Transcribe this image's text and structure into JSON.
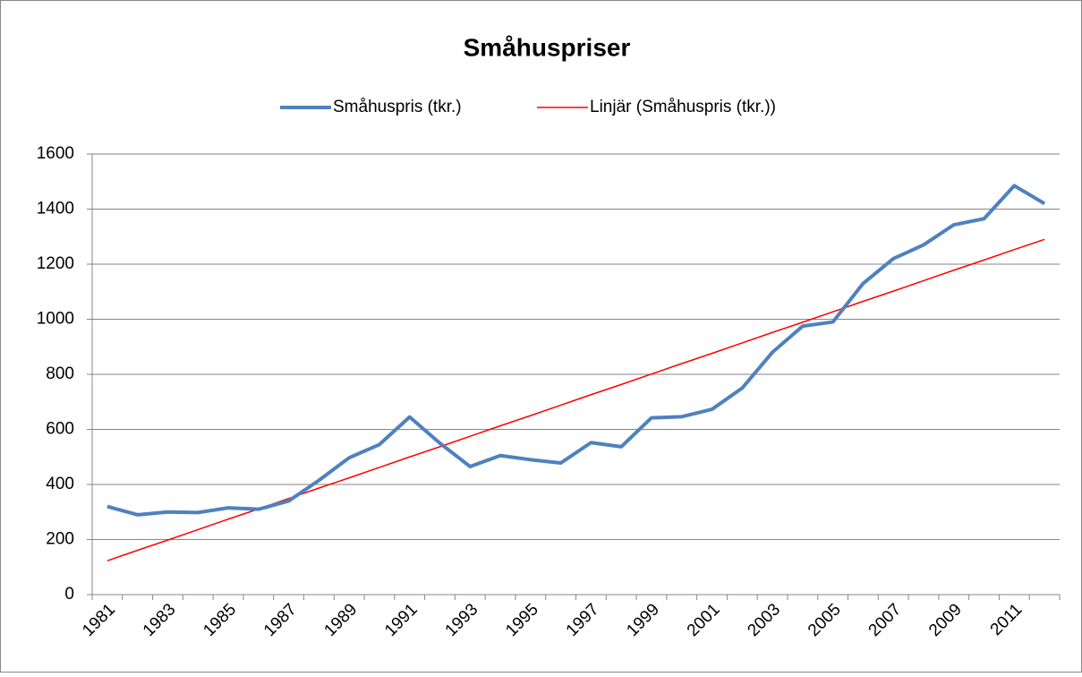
{
  "chart_data": {
    "type": "line",
    "title": "Småhuspriser",
    "categories": [
      "1981",
      null,
      "1983",
      null,
      "1985",
      null,
      "1987",
      null,
      "1989",
      null,
      "1991",
      null,
      "1993",
      null,
      "1995",
      null,
      "1997",
      null,
      "1999",
      null,
      "2001",
      null,
      "2003",
      null,
      "2005",
      null,
      "2007",
      null,
      "2009",
      null,
      "2011",
      null
    ],
    "series": [
      {
        "name": "Småhuspris (tkr.)",
        "color": "#4f81bd",
        "width": 4,
        "values": [
          320,
          290,
          300,
          298,
          315,
          310,
          340,
          415,
          497,
          545,
          645,
          550,
          465,
          505,
          490,
          478,
          552,
          537,
          642,
          646,
          673,
          750,
          880,
          975,
          990,
          1130,
          1220,
          1270,
          1343,
          1365,
          1485,
          1420
        ]
      },
      {
        "name": "Linjär (Småhuspris (tkr.))",
        "color": "#ff0000",
        "width": 1.5,
        "values": [
          123,
          161,
          198,
          236,
          274,
          311,
          349,
          387,
          424,
          462,
          500,
          537,
          575,
          613,
          650,
          688,
          726,
          763,
          801,
          839,
          876,
          914,
          952,
          989,
          1027,
          1065,
          1102,
          1140,
          1178,
          1215,
          1253,
          1290
        ]
      }
    ],
    "ylim": [
      0,
      1600
    ],
    "yticks": [
      0,
      200,
      400,
      600,
      800,
      1000,
      1200,
      1400,
      1600
    ],
    "grid": true,
    "legend": "top"
  }
}
